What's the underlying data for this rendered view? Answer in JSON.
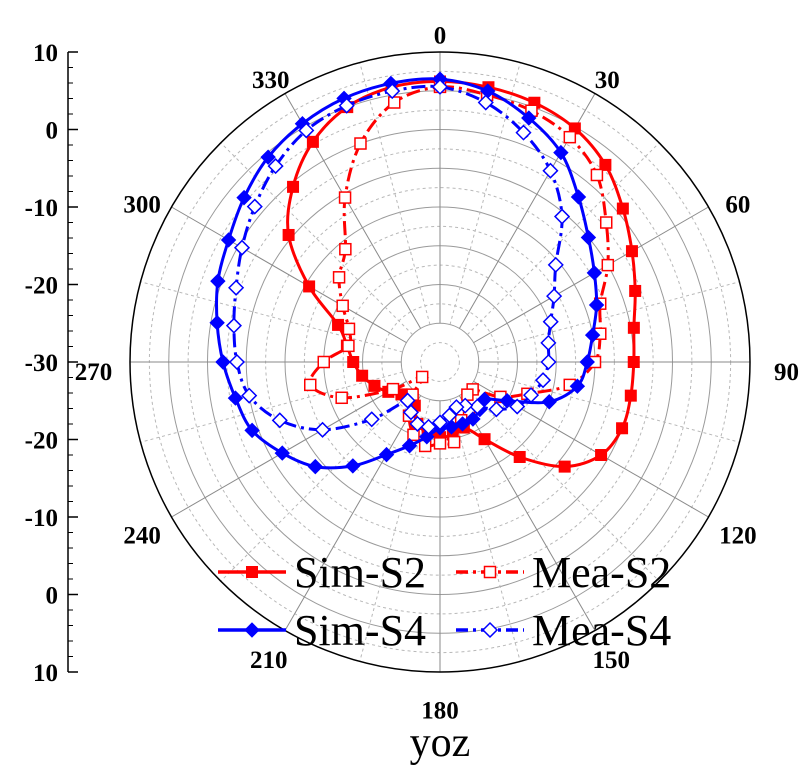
{
  "chart_data": {
    "type": "polar-line",
    "title": "",
    "xlabel": "yoz",
    "radial_axis": {
      "min": -30,
      "max": 10,
      "step": 5,
      "labels": [
        "10",
        "0",
        "-10",
        "-20",
        "-30",
        "-20",
        "-10",
        "0",
        "10"
      ]
    },
    "angle_labels": [
      "0",
      "30",
      "60",
      "90",
      "120",
      "150",
      "180",
      "210",
      "240",
      "270",
      "300",
      "330"
    ],
    "angle_direction": "clockwise",
    "zero_location": "top",
    "series": [
      {
        "name": "Sim-S2",
        "color": "#ff0000",
        "dash": "solid",
        "marker": "filled-square",
        "angles": [
          0,
          10,
          20,
          30,
          40,
          50,
          60,
          70,
          80,
          90,
          100,
          110,
          120,
          130,
          140,
          150,
          160,
          170,
          180,
          190,
          200,
          210,
          220,
          230,
          240,
          250,
          260,
          270,
          280,
          290,
          300,
          310,
          320,
          330,
          340,
          350
        ],
        "values": [
          6.2,
          6,
          5.6,
          4.8,
          3.2,
          0.8,
          -1.4,
          -3.2,
          -4.6,
          -5,
          -5,
          -5,
          -6,
          -9,
          -14,
          -18.5,
          -21,
          -20.5,
          -20.3,
          -20.8,
          -21.5,
          -23.5,
          -24.5,
          -23.5,
          -22.3,
          -21,
          -19.8,
          -18.8,
          -17.8,
          -16,
          -10.5,
          -4.5,
          -0.5,
          2.8,
          5,
          6
        ]
      },
      {
        "name": "Mea-S2",
        "color": "#ff0000",
        "dash": "dashdot",
        "marker": "open-square",
        "angles": [
          0,
          10,
          20,
          30,
          40,
          50,
          60,
          70,
          80,
          90,
          100,
          110,
          120,
          130,
          140,
          150,
          160,
          170,
          180,
          190,
          200,
          210,
          220,
          230,
          240,
          250,
          260,
          270,
          280,
          290,
          300,
          310,
          320,
          330,
          340,
          350
        ],
        "values": [
          5.5,
          5,
          4.5,
          3.5,
          1.5,
          -2,
          -5,
          -8,
          -9,
          -10,
          -13,
          -18,
          -21,
          -24.5,
          -24.5,
          -22.5,
          -22,
          -19.5,
          -19.5,
          -19,
          -20,
          -22,
          -24.5,
          -27,
          -23,
          -16.5,
          -13,
          -15,
          -18,
          -17.5,
          -15.5,
          -13,
          -11,
          -5.5,
          0,
          4
        ]
      },
      {
        "name": "Sim-S4",
        "color": "#0000ff",
        "dash": "solid",
        "marker": "filled-diamond",
        "angles": [
          0,
          10,
          20,
          30,
          40,
          50,
          60,
          70,
          80,
          90,
          100,
          110,
          120,
          130,
          140,
          150,
          160,
          170,
          180,
          190,
          200,
          210,
          220,
          230,
          240,
          250,
          260,
          270,
          280,
          290,
          300,
          310,
          320,
          330,
          340,
          350
        ],
        "values": [
          6.5,
          5.5,
          3.5,
          1.2,
          -2.2,
          -5,
          -7,
          -8.5,
          -10,
          -11,
          -12,
          -15,
          -20,
          -22.5,
          -22,
          -21.5,
          -21.5,
          -21.5,
          -21.5,
          -20.2,
          -18.5,
          -16.2,
          -12.5,
          -9,
          -6.5,
          -4.2,
          -3.2,
          -2,
          -0.8,
          0.5,
          1.5,
          3,
          4.5,
          5.5,
          6.2,
          6.5
        ]
      },
      {
        "name": "Mea-S4",
        "color": "#0000ff",
        "dash": "dashdot",
        "marker": "open-diamond",
        "angles": [
          0,
          10,
          20,
          30,
          40,
          50,
          60,
          70,
          80,
          90,
          100,
          110,
          120,
          130,
          140,
          150,
          160,
          170,
          180,
          190,
          200,
          210,
          220,
          230,
          240,
          250,
          260,
          270,
          280,
          290,
          300,
          310,
          320,
          330,
          340,
          350
        ],
        "values": [
          5.5,
          4,
          1.5,
          -1.5,
          -5.5,
          -10.5,
          -13,
          -14.8,
          -15.8,
          -16,
          -16.5,
          -17.5,
          -18.5,
          -20.5,
          -22.5,
          -23.5,
          -23.8,
          -23,
          -22.2,
          -21.5,
          -21.5,
          -22.5,
          -23.5,
          -18.5,
          -12.5,
          -8,
          -5,
          -3.8,
          -3,
          -2,
          -0.5,
          1.2,
          3,
          4.5,
          5.2,
          5.5
        ]
      }
    ],
    "legend": [
      {
        "label": "Sim-S2",
        "color": "#ff0000",
        "dash": "solid",
        "marker": "filled-square"
      },
      {
        "label": "Mea-S2",
        "color": "#ff0000",
        "dash": "dashdot",
        "marker": "open-square"
      },
      {
        "label": "Sim-S4",
        "color": "#0000ff",
        "dash": "solid",
        "marker": "filled-diamond"
      },
      {
        "label": "Mea-S4",
        "color": "#0000ff",
        "dash": "dashdot",
        "marker": "open-diamond"
      }
    ],
    "legend_position": "bottom-center"
  }
}
